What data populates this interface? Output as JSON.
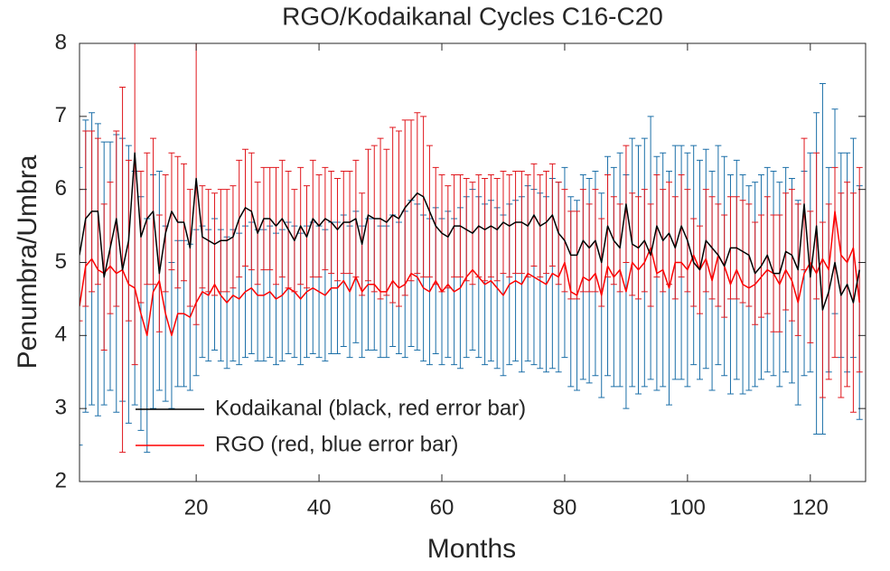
{
  "chart_data": {
    "type": "errorbar",
    "title": "RGO/Kodaikanal Cycles C16-C20",
    "x_label": "Months",
    "y_label": "Penumbra/Umbra",
    "xlim": [
      1,
      129
    ],
    "ylim": [
      2,
      8
    ],
    "xticks": [
      20,
      40,
      60,
      80,
      100,
      120
    ],
    "yticks": [
      2,
      3,
      4,
      5,
      6,
      7,
      8
    ],
    "legend_position": "lower left",
    "x": [
      1,
      2,
      3,
      4,
      5,
      6,
      7,
      8,
      9,
      10,
      11,
      12,
      13,
      14,
      15,
      16,
      17,
      18,
      19,
      20,
      21,
      22,
      23,
      24,
      25,
      26,
      27,
      28,
      29,
      30,
      31,
      32,
      33,
      34,
      35,
      36,
      37,
      38,
      39,
      40,
      41,
      42,
      43,
      44,
      45,
      46,
      47,
      48,
      49,
      50,
      51,
      52,
      53,
      54,
      55,
      56,
      57,
      58,
      59,
      60,
      61,
      62,
      63,
      64,
      65,
      66,
      67,
      68,
      69,
      70,
      71,
      72,
      73,
      74,
      75,
      76,
      77,
      78,
      79,
      80,
      81,
      82,
      83,
      84,
      85,
      86,
      87,
      88,
      89,
      90,
      91,
      92,
      93,
      94,
      95,
      96,
      97,
      98,
      99,
      100,
      101,
      102,
      103,
      104,
      105,
      106,
      107,
      108,
      109,
      110,
      111,
      112,
      113,
      114,
      115,
      116,
      117,
      118,
      119,
      120,
      121,
      122,
      123,
      124,
      125,
      126,
      127,
      128
    ],
    "series": [
      {
        "name": "Kodaikanal (black, red error bar)",
        "color": "#000000",
        "error_color": "#e0161c",
        "values": [
          5.1,
          5.6,
          5.7,
          5.7,
          4.8,
          5.2,
          5.6,
          4.9,
          5.3,
          6.5,
          5.35,
          5.6,
          5.7,
          4.85,
          5.4,
          5.7,
          5.55,
          5.55,
          5.2,
          6.15,
          5.35,
          5.3,
          5.25,
          5.3,
          5.3,
          5.35,
          5.6,
          5.75,
          5.7,
          5.4,
          5.6,
          5.6,
          5.5,
          5.6,
          5.45,
          5.3,
          5.5,
          5.35,
          5.6,
          5.5,
          5.6,
          5.55,
          5.45,
          5.55,
          5.55,
          5.6,
          5.25,
          5.65,
          5.6,
          5.6,
          5.55,
          5.65,
          5.6,
          5.75,
          5.85,
          5.95,
          5.9,
          5.7,
          5.5,
          5.4,
          5.35,
          5.5,
          5.5,
          5.45,
          5.4,
          5.5,
          5.45,
          5.5,
          5.45,
          5.55,
          5.5,
          5.55,
          5.55,
          5.5,
          5.65,
          5.5,
          5.55,
          5.65,
          5.4,
          5.3,
          5.1,
          5.1,
          5.3,
          5.2,
          5.3,
          5.0,
          5.5,
          5.3,
          5.2,
          5.8,
          5.25,
          5.2,
          5.3,
          5.1,
          5.5,
          5.3,
          5.4,
          5.2,
          5.5,
          5.3,
          5.0,
          4.9,
          5.3,
          5.2,
          5.1,
          4.95,
          5.2,
          5.2,
          5.15,
          5.1,
          4.85,
          4.95,
          5.1,
          4.85,
          4.85,
          5.15,
          5.1,
          4.9,
          5.8,
          4.8,
          5.5,
          4.35,
          4.6,
          5.0,
          4.55,
          4.7,
          4.45,
          4.9
        ],
        "errors": [
          0.9,
          1.2,
          1.1,
          1.0,
          1.0,
          0.9,
          1.2,
          2.5,
          1.1,
          2.9,
          0.9,
          0.9,
          1.0,
          0.8,
          0.8,
          0.8,
          0.9,
          0.8,
          0.8,
          2.0,
          0.7,
          0.7,
          0.7,
          0.7,
          0.7,
          0.7,
          0.8,
          0.8,
          0.8,
          0.7,
          0.7,
          0.7,
          0.8,
          0.8,
          0.8,
          0.7,
          0.8,
          0.7,
          0.8,
          0.7,
          0.7,
          0.7,
          0.7,
          0.7,
          0.7,
          0.8,
          0.7,
          0.9,
          1.0,
          1.1,
          1.0,
          1.2,
          1.2,
          1.2,
          1.1,
          1.1,
          1.1,
          0.9,
          0.8,
          0.8,
          0.7,
          0.7,
          0.7,
          0.7,
          0.7,
          0.7,
          0.7,
          0.7,
          0.7,
          0.7,
          0.7,
          0.7,
          0.7,
          0.7,
          0.7,
          0.7,
          0.7,
          0.7,
          0.7,
          0.7,
          0.6,
          0.6,
          0.7,
          0.6,
          0.7,
          0.6,
          0.7,
          0.6,
          0.6,
          0.8,
          0.7,
          0.7,
          0.7,
          0.7,
          0.7,
          0.7,
          0.7,
          0.7,
          0.7,
          0.7,
          0.6,
          0.6,
          0.7,
          0.7,
          0.7,
          0.7,
          0.7,
          0.7,
          0.7,
          0.7,
          0.7,
          0.7,
          0.8,
          0.8,
          0.8,
          0.8,
          0.9,
          0.9,
          0.9,
          0.9,
          1.0,
          1.2,
          1.2,
          1.3,
          1.4,
          1.4,
          1.5,
          1.4
        ]
      },
      {
        "name": "RGO (red, blue error bar)",
        "color": "#ff0000",
        "error_color": "#1b6fa8",
        "values": [
          4.4,
          4.95,
          5.05,
          4.9,
          4.85,
          4.95,
          4.85,
          4.9,
          4.7,
          4.65,
          4.3,
          4.0,
          4.6,
          4.75,
          4.3,
          4.0,
          4.3,
          4.3,
          4.25,
          4.45,
          4.6,
          4.55,
          4.7,
          4.55,
          4.45,
          4.55,
          4.5,
          4.6,
          4.65,
          4.55,
          4.55,
          4.6,
          4.5,
          4.55,
          4.65,
          4.6,
          4.5,
          4.6,
          4.65,
          4.6,
          4.55,
          4.65,
          4.65,
          4.75,
          4.6,
          4.8,
          4.6,
          4.7,
          4.7,
          4.6,
          4.6,
          4.75,
          4.65,
          4.7,
          4.85,
          4.8,
          4.65,
          4.6,
          4.75,
          4.6,
          4.7,
          4.6,
          4.65,
          4.8,
          4.9,
          4.8,
          4.7,
          4.75,
          4.65,
          4.55,
          4.7,
          4.75,
          4.7,
          4.85,
          4.8,
          4.75,
          4.7,
          4.85,
          4.8,
          5.0,
          4.6,
          4.55,
          4.8,
          4.75,
          4.85,
          4.55,
          4.95,
          4.8,
          4.9,
          4.6,
          5.0,
          4.9,
          5.0,
          5.2,
          4.85,
          4.9,
          4.65,
          5.0,
          5.0,
          4.9,
          5.1,
          4.9,
          5.05,
          4.75,
          5.1,
          4.95,
          4.7,
          4.9,
          4.7,
          4.65,
          4.7,
          4.8,
          4.9,
          4.85,
          4.7,
          4.9,
          4.75,
          4.45,
          4.85,
          5.0,
          4.85,
          5.05,
          4.9,
          5.7,
          5.1,
          5.0,
          5.2,
          4.45
        ],
        "errors": [
          1.9,
          2.0,
          2.0,
          2.0,
          1.8,
          1.7,
          1.9,
          1.8,
          1.9,
          1.6,
          1.6,
          1.6,
          1.6,
          1.5,
          1.2,
          1.0,
          1.0,
          1.0,
          1.0,
          1.0,
          0.9,
          0.9,
          0.9,
          0.9,
          0.9,
          0.9,
          0.9,
          0.9,
          0.9,
          0.9,
          0.9,
          0.9,
          0.9,
          0.9,
          0.9,
          0.9,
          0.9,
          0.9,
          0.9,
          0.9,
          0.9,
          0.9,
          0.9,
          0.9,
          0.9,
          0.9,
          0.9,
          0.9,
          0.9,
          0.9,
          0.9,
          0.9,
          0.9,
          1.0,
          1.0,
          1.0,
          1.0,
          1.0,
          1.0,
          1.0,
          1.0,
          1.0,
          1.1,
          1.1,
          1.1,
          1.1,
          1.1,
          1.1,
          1.1,
          1.1,
          1.1,
          1.1,
          1.2,
          1.2,
          1.2,
          1.2,
          1.2,
          1.3,
          1.3,
          1.3,
          1.3,
          1.3,
          1.4,
          1.4,
          1.4,
          1.4,
          1.5,
          1.5,
          1.6,
          1.6,
          1.7,
          1.7,
          1.7,
          1.8,
          1.6,
          1.6,
          1.6,
          1.6,
          1.6,
          1.6,
          1.5,
          1.5,
          1.5,
          1.5,
          1.5,
          1.5,
          1.5,
          1.5,
          1.5,
          1.4,
          1.4,
          1.4,
          1.4,
          1.4,
          1.4,
          1.4,
          1.4,
          1.4,
          1.4,
          1.5,
          2.2,
          2.4,
          1.4,
          1.4,
          1.4,
          1.5,
          1.5,
          1.6
        ]
      }
    ]
  }
}
